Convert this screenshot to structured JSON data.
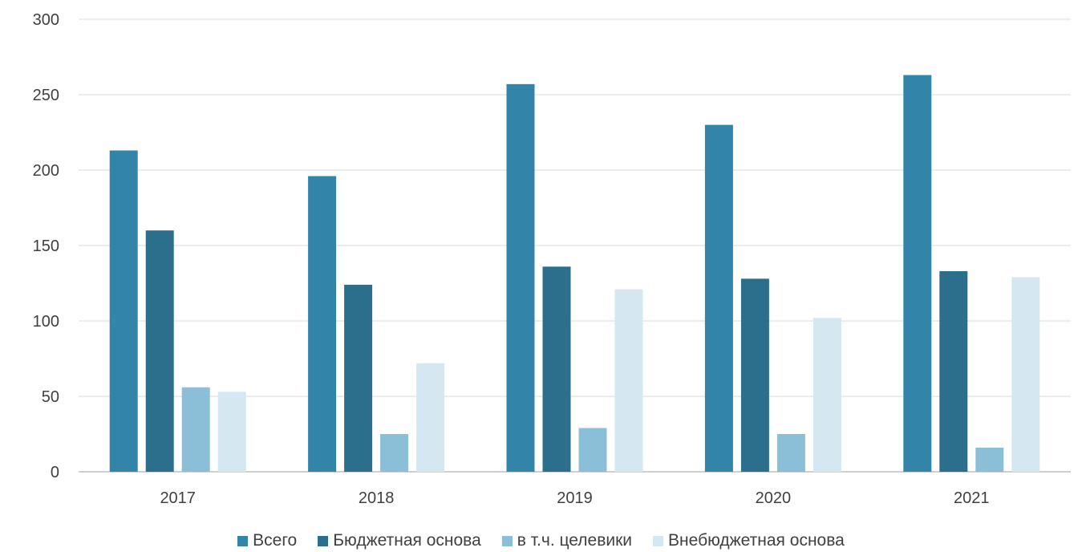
{
  "chart_data": {
    "type": "bar",
    "title": "",
    "xlabel": "",
    "ylabel": "",
    "categories": [
      "2017",
      "2018",
      "2019",
      "2020",
      "2021"
    ],
    "ylim": [
      0,
      300
    ],
    "yticks": [
      0,
      50,
      100,
      150,
      200,
      250,
      300
    ],
    "grid": true,
    "legend_position": "bottom",
    "series": [
      {
        "name": "Всего",
        "color": "#3384a9",
        "values": [
          213,
          196,
          257,
          230,
          263
        ]
      },
      {
        "name": "Бюджетная основа",
        "color": "#2c6f8d",
        "values": [
          160,
          124,
          136,
          128,
          133
        ]
      },
      {
        "name": "в т.ч. целевики",
        "color": "#8bbfd7",
        "values": [
          56,
          25,
          29,
          25,
          16
        ]
      },
      {
        "name": "Внебюджетная основа",
        "color": "#d5e8f1",
        "values": [
          53,
          72,
          121,
          102,
          129
        ]
      }
    ]
  }
}
